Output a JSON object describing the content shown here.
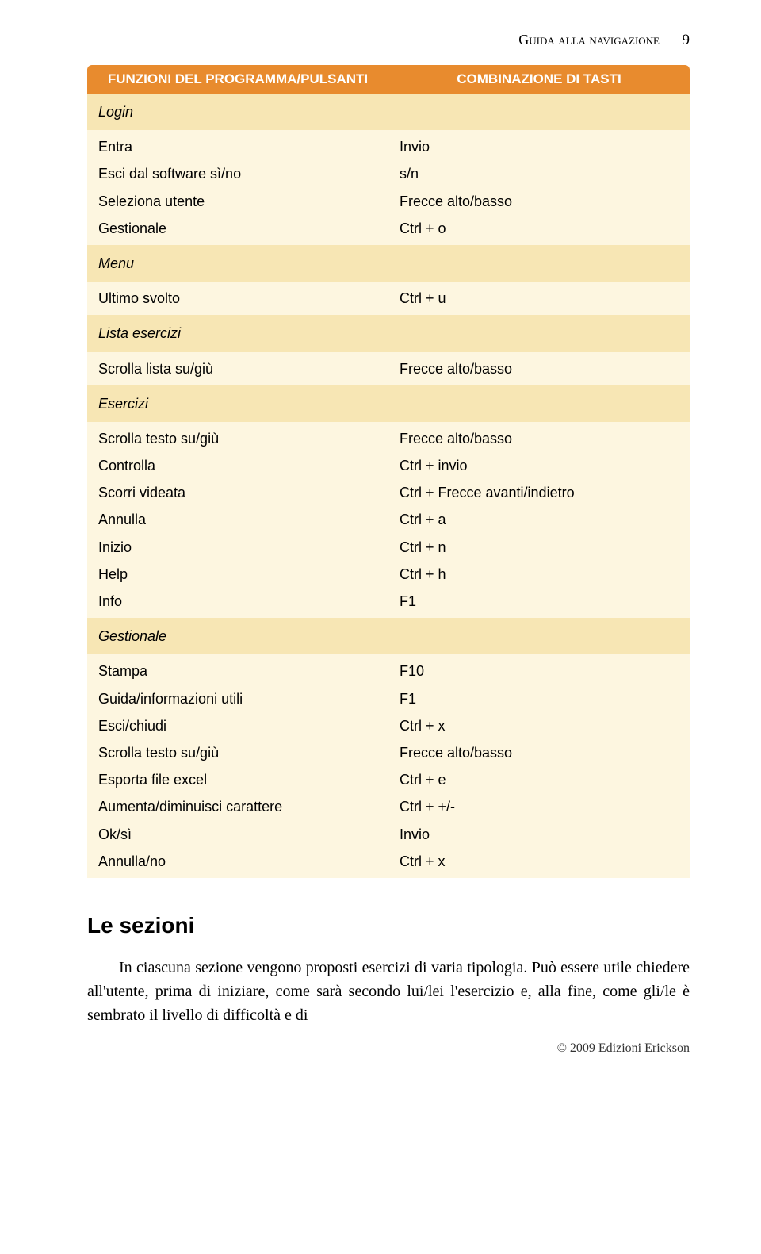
{
  "header": {
    "running": "Guida alla navigazione",
    "page_number": "9"
  },
  "table": {
    "headers": {
      "left": "FUNZIONI DEL PROGRAMMA/PULSANTI",
      "right": "COMBINAZIONE DI TASTI"
    },
    "sections": {
      "login": "Login",
      "menu": "Menu",
      "lista": "Lista esercizi",
      "esercizi": "Esercizi",
      "gestionale": "Gestionale"
    },
    "rows": {
      "login": {
        "left": [
          "Entra",
          "Esci dal software sì/no",
          "Seleziona utente",
          "Gestionale"
        ],
        "right": [
          "Invio",
          "s/n",
          "Frecce alto/basso",
          "Ctrl + o"
        ]
      },
      "menu": {
        "left": [
          "Ultimo svolto"
        ],
        "right": [
          "Ctrl + u"
        ]
      },
      "lista": {
        "left": [
          "Scrolla lista su/giù"
        ],
        "right": [
          "Frecce alto/basso"
        ]
      },
      "esercizi": {
        "left": [
          "Scrolla testo su/giù",
          "Controlla",
          "Scorri videata",
          "Annulla",
          "Inizio",
          "Help",
          "Info"
        ],
        "right": [
          "Frecce alto/basso",
          "Ctrl + invio",
          "Ctrl + Frecce avanti/indietro",
          "Ctrl + a",
          "Ctrl + n",
          "Ctrl + h",
          "F1"
        ]
      },
      "gestionale": {
        "left": [
          "Stampa",
          "Guida/informazioni utili",
          "Esci/chiudi",
          "Scrolla testo su/giù",
          "Esporta file excel",
          "Aumenta/diminuisci carattere",
          "Ok/sì",
          "Annulla/no"
        ],
        "right": [
          "F10",
          "F1",
          "Ctrl + x",
          "Frecce alto/basso",
          "Ctrl + e",
          "Ctrl + +/-",
          "Invio",
          "Ctrl + x"
        ]
      }
    }
  },
  "heading": "Le sezioni",
  "paragraph": "In ciascuna sezione vengono proposti esercizi di varia tipologia. Può essere utile chiedere all'utente, prima di iniziare, come sarà secondo lui/lei l'esercizio e, alla fine, come gli/le è sembrato il livello di difficoltà e di",
  "footer": "© 2009 Edizioni Erickson",
  "colors": {
    "header_bg": "#e88b2e",
    "header_fg": "#ffffff",
    "section_bg": "#f7e6b4",
    "row_bg": "#fdf6e0"
  }
}
